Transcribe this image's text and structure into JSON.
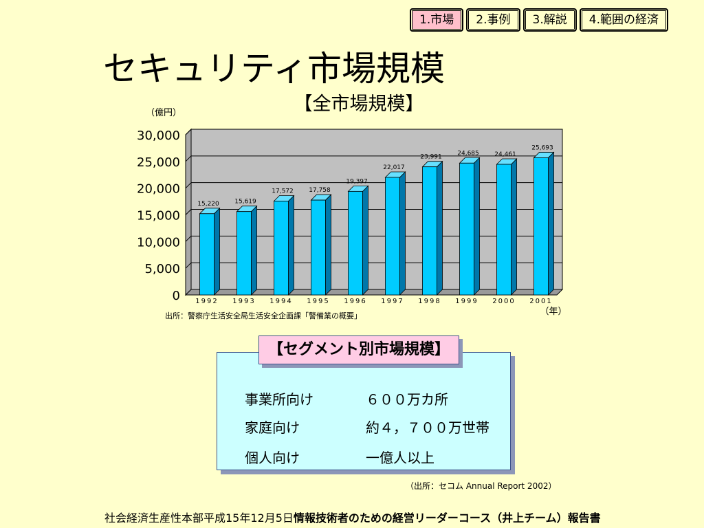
{
  "nav": {
    "tabs": [
      {
        "label": "1.市場",
        "active": true
      },
      {
        "label": "2.事例",
        "active": false
      },
      {
        "label": "3.解説",
        "active": false
      },
      {
        "label": "4.範囲の経済",
        "active": false
      }
    ]
  },
  "page_title": "セキュリティ市場規模",
  "chart_data": {
    "type": "bar",
    "title": "【全市場規模】",
    "ylabel": "（億円）",
    "xlabel": "（年）",
    "categories": [
      "1992",
      "1993",
      "1994",
      "1995",
      "1996",
      "1997",
      "1998",
      "1999",
      "2000",
      "2001"
    ],
    "values": [
      15220,
      15619,
      17572,
      17758,
      19397,
      22017,
      23991,
      24685,
      24461,
      25693
    ],
    "data_labels": [
      "15,220",
      "15,619",
      "17,572",
      "17,758",
      "19,397",
      "22,017",
      "23,991",
      "24,685",
      "24,461",
      "25,693"
    ],
    "ylim": [
      0,
      30000
    ],
    "yticks": [
      0,
      5000,
      10000,
      15000,
      20000,
      25000,
      30000
    ],
    "ytick_labels": [
      "0",
      "5,000",
      "10,000",
      "15,000",
      "20,000",
      "25,000",
      "30,000"
    ],
    "grid": true,
    "colors": {
      "bar": "#00ccff",
      "bar_side": "#0077aa",
      "bar_top": "#66e0ff",
      "plot_bg": "#c0c0c0"
    }
  },
  "chart_source": "出所：警察庁生活安全局生活安全企画課「警備業の概要」",
  "segment": {
    "title": "【セグメント別市場規模】",
    "rows": [
      {
        "label": "事業所向け",
        "value": "６００万カ所"
      },
      {
        "label": "家庭向け",
        "value": "約４，７００万世帯"
      },
      {
        "label": "個人向け",
        "value": "一億人以上"
      }
    ],
    "source": "（出所：セコム Annual Report 2002）"
  },
  "footer": {
    "prefix": "社会経済生産性本部平成15年12月5日",
    "bold": "情報技術者のための経営リーダーコース（井上チーム）報告書"
  }
}
